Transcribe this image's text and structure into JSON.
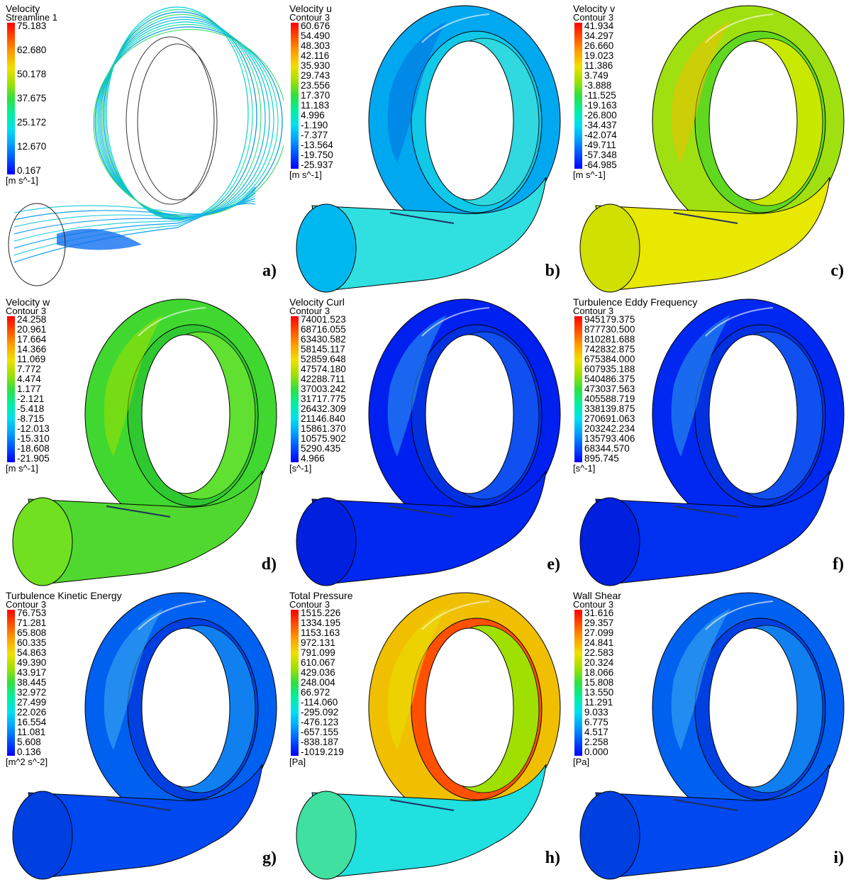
{
  "palette": {
    "scale": [
      "#0000ff",
      "#0050ff",
      "#00a0ff",
      "#00e0f0",
      "#00f0a0",
      "#30e040",
      "#a0e000",
      "#f0e000",
      "#ffa000",
      "#ff5000",
      "#ff0000"
    ]
  },
  "panels": [
    {
      "label": "a)",
      "variable": "Velocity",
      "location": "Streamline 1",
      "unit": "[m s^-1]",
      "ticks": [
        "75.183",
        "62.680",
        "50.178",
        "37.675",
        "25.172",
        "12.670",
        "0.167"
      ],
      "style": "streamline"
    },
    {
      "label": "b)",
      "variable": "Velocity u",
      "location": "Contour 3",
      "unit": "[m s^-1]",
      "ticks": [
        "60.676",
        "54.490",
        "48.303",
        "42.116",
        "35.930",
        "29.743",
        "23.556",
        "17.370",
        "11.183",
        "4.996",
        "-1.190",
        "-7.377",
        "-13.564",
        "-19.750",
        "-25.937"
      ],
      "style": "contour",
      "colors": {
        "outer": "#00a8f0",
        "inner": "#10c8e8",
        "side": "#30d8e0",
        "tube": "#30e0e0",
        "mouth": "#00b8f0",
        "patch": "#0070e0"
      }
    },
    {
      "label": "c)",
      "variable": "Velocity v",
      "location": "Contour 3",
      "unit": "[m s^-1]",
      "ticks": [
        "41.934",
        "34.297",
        "26.660",
        "19.023",
        "11.386",
        "3.749",
        "-3.888",
        "-11.525",
        "-19.163",
        "-26.800",
        "-34.437",
        "-42.074",
        "-49.711",
        "-57.348",
        "-64.985"
      ],
      "style": "contour",
      "colors": {
        "outer": "#a0e010",
        "inner": "#60d820",
        "side": "#c8e800",
        "tube": "#e8e800",
        "mouth": "#d0e000",
        "patch": "#f0c000"
      }
    },
    {
      "label": "d)",
      "variable": "Velocity w",
      "location": "Contour 3",
      "unit": "[m s^-1]",
      "ticks": [
        "24.258",
        "20.961",
        "17.664",
        "14.366",
        "11.069",
        "7.772",
        "4.474",
        "1.177",
        "-2.121",
        "-5.418",
        "-8.715",
        "-12.013",
        "-15.310",
        "-18.608",
        "-21.905"
      ],
      "style": "contour",
      "colors": {
        "outer": "#40d830",
        "inner": "#30c830",
        "side": "#60e030",
        "tube": "#50d830",
        "mouth": "#70e020",
        "patch": "#a0e000"
      }
    },
    {
      "label": "e)",
      "variable": "Velocity Curl",
      "location": "Contour 3",
      "unit": "[s^-1]",
      "ticks": [
        "74001.523",
        "68716.055",
        "63430.582",
        "58145.117",
        "52859.648",
        "47574.180",
        "42288.711",
        "37003.242",
        "31717.775",
        "26432.309",
        "21146.840",
        "15861.370",
        "10575.902",
        "5290.435",
        "4.966"
      ],
      "style": "contour",
      "colors": {
        "outer": "#0020f0",
        "inner": "#0030e0",
        "side": "#1050f0",
        "tube": "#0028f0",
        "mouth": "#0020e0",
        "patch": "#30a0f0"
      }
    },
    {
      "label": "f)",
      "variable": "Turbulence Eddy Frequency",
      "location": "Contour 3",
      "unit": "[s^-1]",
      "ticks": [
        "945179.375",
        "877730.500",
        "810281.688",
        "742832.875",
        "675384.000",
        "607935.188",
        "540486.375",
        "473037.563",
        "405588.719",
        "338139.875",
        "270691.063",
        "203242.234",
        "135793.406",
        "68344.570",
        "895.745"
      ],
      "style": "contour",
      "colors": {
        "outer": "#0028f0",
        "inner": "#0030e0",
        "side": "#1050f0",
        "tube": "#0030f0",
        "mouth": "#0020e0",
        "patch": "#30a0f0"
      }
    },
    {
      "label": "g)",
      "variable": "Turbulence Kinetic Energy",
      "location": "Contour 3",
      "unit": "[m^2 s^-2]",
      "ticks": [
        "76.753",
        "71.281",
        "65.808",
        "60.335",
        "54.863",
        "49.390",
        "43.917",
        "38.445",
        "32.972",
        "27.499",
        "22.026",
        "16.554",
        "11.081",
        "5.608",
        "0.136"
      ],
      "style": "contour",
      "colors": {
        "outer": "#0060f0",
        "inner": "#0040e0",
        "side": "#1080f0",
        "tube": "#0048f0",
        "mouth": "#0040e0",
        "patch": "#40b0f0"
      }
    },
    {
      "label": "h)",
      "variable": "Total Pressure",
      "location": "Contour 3",
      "unit": "[Pa]",
      "ticks": [
        "1515.226",
        "1334.195",
        "1153.163",
        "972.131",
        "791.099",
        "610.067",
        "429.036",
        "248.004",
        "66.972",
        "-114.060",
        "-295.092",
        "-476.123",
        "-657.155",
        "-838.187",
        "-1019.219"
      ],
      "style": "contour",
      "colors": {
        "outer": "#f0c000",
        "inner": "#ff5000",
        "side": "#a0e000",
        "tube": "#20e0e0",
        "mouth": "#40e0a0",
        "patch": "#e8e000"
      }
    },
    {
      "label": "i)",
      "variable": "Wall Shear",
      "location": "Contour 3",
      "unit": "[Pa]",
      "ticks": [
        "31.616",
        "29.357",
        "27.099",
        "24.841",
        "22.583",
        "20.324",
        "18.066",
        "15.808",
        "13.550",
        "11.291",
        "9.033",
        "6.775",
        "4.517",
        "2.258",
        "0.000"
      ],
      "style": "contour",
      "colors": {
        "outer": "#0060f0",
        "inner": "#0040e0",
        "side": "#1080f0",
        "tube": "#0048f0",
        "mouth": "#0040e0",
        "patch": "#40b0f0"
      }
    }
  ]
}
